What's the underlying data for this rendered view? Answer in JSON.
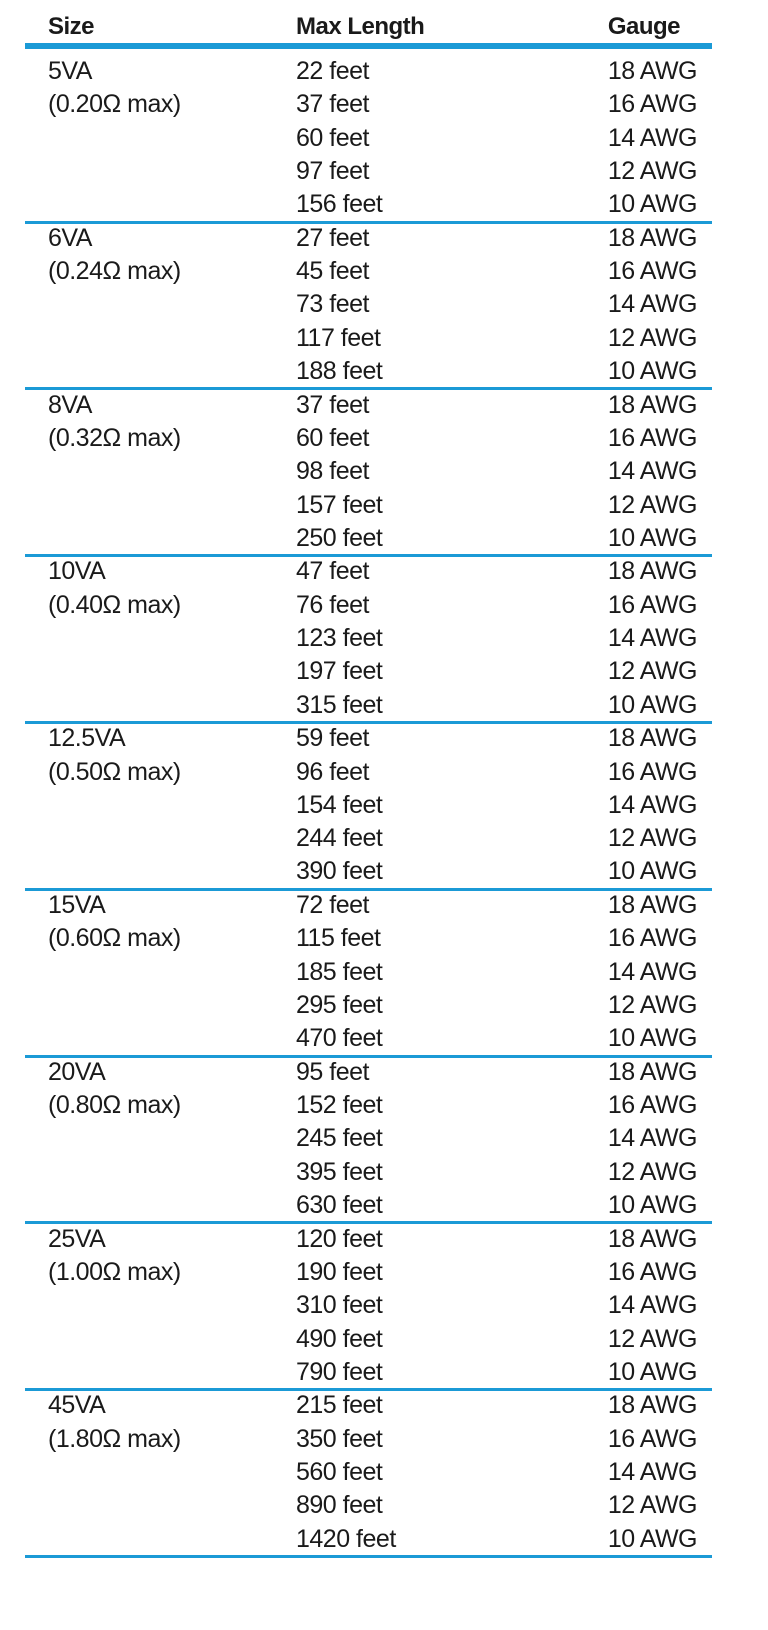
{
  "header": {
    "size": "Size",
    "max_length": "Max Length",
    "gauge": "Gauge"
  },
  "groups": [
    {
      "size": "5VA",
      "resistance": "(0.20Ω max)",
      "rows": [
        [
          "22 feet",
          "18 AWG"
        ],
        [
          "37 feet",
          "16 AWG"
        ],
        [
          "60 feet",
          "14 AWG"
        ],
        [
          "97 feet",
          "12 AWG"
        ],
        [
          "156 feet",
          "10 AWG"
        ]
      ]
    },
    {
      "size": "6VA",
      "resistance": "(0.24Ω max)",
      "rows": [
        [
          "27 feet",
          "18 AWG"
        ],
        [
          "45 feet",
          "16 AWG"
        ],
        [
          "73 feet",
          "14 AWG"
        ],
        [
          "117 feet",
          "12 AWG"
        ],
        [
          "188 feet",
          "10 AWG"
        ]
      ]
    },
    {
      "size": "8VA",
      "resistance": "(0.32Ω max)",
      "rows": [
        [
          "37 feet",
          "18 AWG"
        ],
        [
          "60 feet",
          "16 AWG"
        ],
        [
          "98 feet",
          "14 AWG"
        ],
        [
          "157 feet",
          "12 AWG"
        ],
        [
          "250 feet",
          "10 AWG"
        ]
      ]
    },
    {
      "size": "10VA",
      "resistance": "(0.40Ω max)",
      "rows": [
        [
          "47 feet",
          "18 AWG"
        ],
        [
          "76 feet",
          "16 AWG"
        ],
        [
          "123 feet",
          "14 AWG"
        ],
        [
          "197 feet",
          "12 AWG"
        ],
        [
          "315 feet",
          "10 AWG"
        ]
      ]
    },
    {
      "size": "12.5VA",
      "resistance": "(0.50Ω max)",
      "rows": [
        [
          "59 feet",
          "18 AWG"
        ],
        [
          "96 feet",
          "16 AWG"
        ],
        [
          "154 feet",
          "14 AWG"
        ],
        [
          "244 feet",
          "12 AWG"
        ],
        [
          "390 feet",
          "10 AWG"
        ]
      ]
    },
    {
      "size": "15VA",
      "resistance": "(0.60Ω max)",
      "rows": [
        [
          "72 feet",
          "18 AWG"
        ],
        [
          "115 feet",
          "16 AWG"
        ],
        [
          "185 feet",
          "14 AWG"
        ],
        [
          "295 feet",
          "12 AWG"
        ],
        [
          "470 feet",
          "10 AWG"
        ]
      ]
    },
    {
      "size": "20VA",
      "resistance": "(0.80Ω max)",
      "rows": [
        [
          "95 feet",
          "18 AWG"
        ],
        [
          "152 feet",
          "16 AWG"
        ],
        [
          "245 feet",
          "14 AWG"
        ],
        [
          "395 feet",
          "12 AWG"
        ],
        [
          "630 feet",
          "10 AWG"
        ]
      ]
    },
    {
      "size": "25VA",
      "resistance": "(1.00Ω max)",
      "rows": [
        [
          "120 feet",
          "18 AWG"
        ],
        [
          "190 feet",
          "16 AWG"
        ],
        [
          "310 feet",
          "14 AWG"
        ],
        [
          "490 feet",
          "12 AWG"
        ],
        [
          "790 feet",
          "10 AWG"
        ]
      ]
    },
    {
      "size": "45VA",
      "resistance": "(1.80Ω max)",
      "rows": [
        [
          "215 feet",
          "18 AWG"
        ],
        [
          "350 feet",
          "16 AWG"
        ],
        [
          "560 feet",
          "14 AWG"
        ],
        [
          "890 feet",
          "12 AWG"
        ],
        [
          "1420 feet",
          "10 AWG"
        ]
      ]
    }
  ]
}
